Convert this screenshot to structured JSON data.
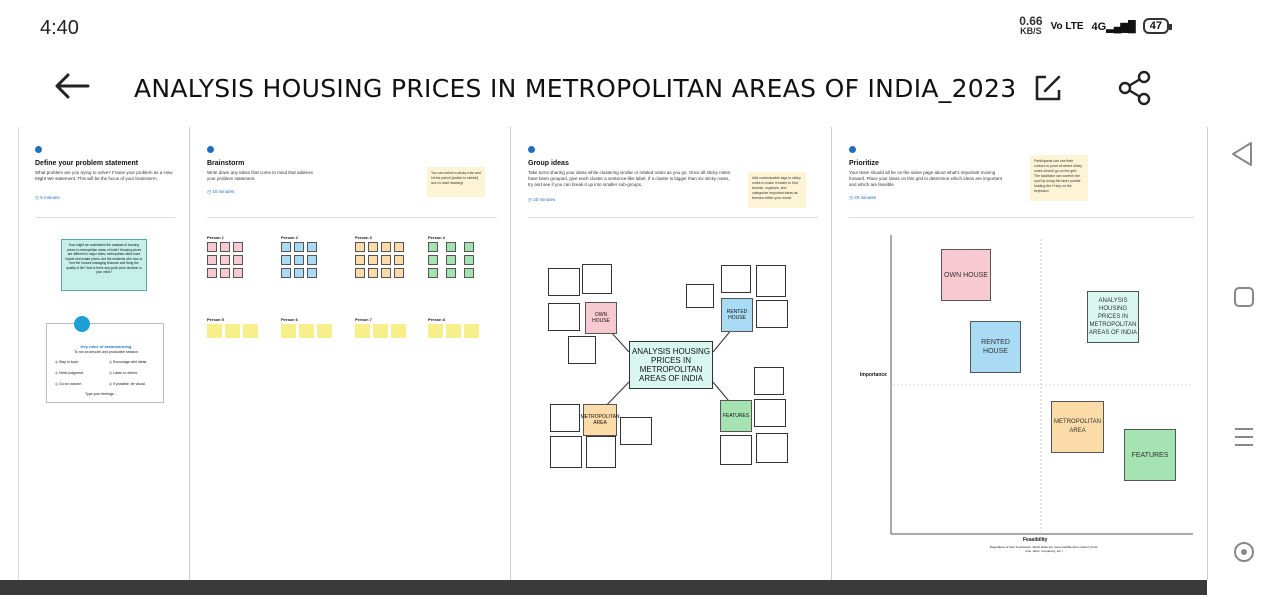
{
  "status": {
    "time": "4:40",
    "net_speed": "0.66",
    "net_unit": "KB/S",
    "volte": "Vo LTE",
    "signal": "4G",
    "battery": "47"
  },
  "header": {
    "title": "ANALYSIS HOUSING PRICES IN METROPOLITAN AREAS OF  INDIA_2023-0…"
  },
  "panels": {
    "define": {
      "title": "Define your problem statement",
      "desc": "What problem are you trying to solve? Frame your problem as a How Might We statement. This will be the focus of your brainstorm.",
      "time": "5 minutes",
      "statement": "How might we understand the analysis of housing prices in metropolitan areas of India? Housing prices are different in major cities; metropolitan cities have higher real estate prices. Are the residents who own or rent the houses managing finances and living the quality of life? And is there any quick price decision in your mind?",
      "rules_title": "Key rules of brainstorming",
      "rules_sub": "To run an smooth and productive session",
      "rules": [
        "Stay in topic.",
        "Encourage wild ideas.",
        "Defer judgment.",
        "Listen to others.",
        "Go for volume.",
        "If possible, be visual."
      ],
      "rules_footer": "Type your feelings..."
    },
    "brainstorm": {
      "title": "Brainstorm",
      "desc": "Write down any ideas that come to mind that address your problem statement.",
      "time": "10 minutes",
      "tip": "You can select a sticky note and hit the pencil [switch to sketch] icon to start drawing!",
      "persons": [
        "Person 1",
        "Person 2",
        "Person 3",
        "Person 4",
        "Person 5",
        "Person 6",
        "Person 7",
        "Person 8"
      ]
    },
    "group": {
      "title": "Group ideas",
      "desc": "Take turns sharing your ideas while clustering similar or related notes as you go. Once all sticky notes have been grouped, give each cluster a sentence-like label. If a cluster is bigger than six sticky notes, try and see if you can break it up into smaller sub-groups.",
      "time": "20 minutes",
      "tip": "Add customizable tags to sticky notes to make it easier to find, browse, organize, and categorize important ideas as themes within your mural.",
      "center": "ANALYSIS HOUSING PRICES IN METROPOLITAN AREAS OF INDIA",
      "cats": [
        "OWN HOUSE",
        "RENTED HOUSE",
        "METROPOLITAN AREA",
        "FEATURES"
      ]
    },
    "prioritize": {
      "title": "Prioritize",
      "desc": "Your team should all be on the same page about what's important moving forward. Place your ideas on this grid to determine which ideas are important and which are feasible.",
      "time": "20 minutes",
      "tip": "Participants can use their cursors to point at where sticky notes should go on the grid. The facilitator can confirm the spot by using the laser pointer holding the H key on the keyboard.",
      "y_axis": "Importance",
      "x_axis": "Feasibility",
      "x_desc": "Regardless of their importance, which tasks are more feasible than others? (Cost, time, effort, complexity, etc.)",
      "items": [
        "OWN HOUSE",
        "ANALYSIS HOUSING PRICES IN METROPOLITAN AREAS OF INDIA",
        "RENTED HOUSE",
        "METROPOLITAN AREA",
        "FEATURES"
      ]
    }
  },
  "colors": {
    "accent": "#1e6fbf",
    "pink": "#f7c9d0",
    "blue": "#a9dbf4",
    "peach": "#fbdca8",
    "green": "#a6e3b3",
    "teal": "#d9f7f0"
  }
}
